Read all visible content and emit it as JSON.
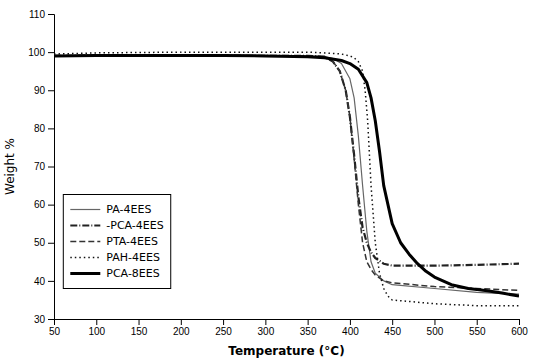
{
  "chart_data": {
    "type": "line",
    "xlabel": "Temperature (°C)",
    "ylabel": "Weight %",
    "xlim": [
      50,
      600
    ],
    "ylim": [
      30,
      110
    ],
    "xticks": [
      50,
      100,
      150,
      200,
      250,
      300,
      350,
      400,
      450,
      500,
      550,
      600
    ],
    "yticks": [
      30,
      40,
      50,
      60,
      70,
      80,
      90,
      100,
      110
    ],
    "grid": false,
    "legend": "lower left",
    "series": [
      {
        "name": "PA-4EES",
        "color": "#666666",
        "line_style": "solid",
        "x": [
          50,
          100,
          150,
          200,
          250,
          300,
          350,
          370,
          380,
          390,
          400,
          405,
          410,
          415,
          420,
          425,
          430,
          440,
          450,
          500,
          550,
          600
        ],
        "values": [
          99.0,
          99.1,
          99.1,
          99.1,
          99.1,
          99.0,
          99.0,
          98.8,
          98.3,
          97.0,
          93.0,
          88.0,
          78.0,
          65.0,
          53.0,
          45.0,
          42.0,
          40.0,
          39.0,
          38.0,
          37.0,
          36.5
        ]
      },
      {
        "name": "-PCA-4EES",
        "color": "#222222",
        "line_style": "dashdot",
        "x": [
          50,
          100,
          150,
          200,
          250,
          300,
          350,
          370,
          380,
          388,
          395,
          400,
          405,
          410,
          415,
          420,
          425,
          430,
          440,
          450,
          500,
          550,
          600
        ],
        "values": [
          99.0,
          99.1,
          99.1,
          99.1,
          99.1,
          99.0,
          99.0,
          98.8,
          97.5,
          95.0,
          90.0,
          83.0,
          73.0,
          62.0,
          54.0,
          50.0,
          47.5,
          46.0,
          44.5,
          44.0,
          44.0,
          44.2,
          44.5
        ]
      },
      {
        "name": "PTA-4EES",
        "color": "#333333",
        "line_style": "dashed",
        "x": [
          50,
          100,
          150,
          200,
          250,
          300,
          350,
          370,
          380,
          388,
          395,
          400,
          405,
          410,
          415,
          420,
          425,
          430,
          440,
          450,
          500,
          550,
          600
        ],
        "values": [
          99.0,
          99.1,
          99.1,
          99.1,
          99.1,
          99.0,
          99.0,
          98.8,
          97.5,
          95.0,
          90.0,
          83.0,
          72.0,
          60.0,
          50.0,
          45.0,
          43.0,
          41.5,
          40.0,
          39.5,
          38.5,
          38.0,
          37.5
        ]
      },
      {
        "name": "PAH-4EES",
        "color": "#111111",
        "line_style": "dotted",
        "x": [
          50,
          100,
          150,
          200,
          250,
          300,
          350,
          370,
          390,
          400,
          405,
          410,
          415,
          418,
          421,
          425,
          430,
          435,
          440,
          445,
          450,
          500,
          550,
          600
        ],
        "values": [
          99.5,
          99.8,
          99.9,
          100.0,
          100.0,
          100.0,
          100.0,
          99.8,
          99.5,
          99.0,
          98.5,
          97.5,
          95.0,
          90.0,
          82.0,
          65.0,
          50.0,
          42.0,
          38.0,
          36.0,
          35.0,
          34.0,
          33.5,
          33.5
        ]
      },
      {
        "name": "PCA-8EES",
        "color": "#000000",
        "line_style": "solid",
        "x": [
          50,
          100,
          150,
          200,
          250,
          300,
          350,
          370,
          390,
          400,
          410,
          420,
          425,
          430,
          435,
          440,
          450,
          460,
          470,
          480,
          490,
          500,
          520,
          540,
          560,
          580,
          600
        ],
        "values": [
          99.0,
          99.1,
          99.1,
          99.1,
          99.1,
          99.0,
          98.8,
          98.5,
          97.8,
          97.0,
          95.5,
          92.0,
          88.0,
          82.0,
          74.0,
          65.0,
          55.0,
          50.0,
          47.0,
          44.5,
          42.5,
          41.0,
          39.0,
          38.0,
          37.5,
          36.8,
          36.0
        ]
      }
    ]
  }
}
